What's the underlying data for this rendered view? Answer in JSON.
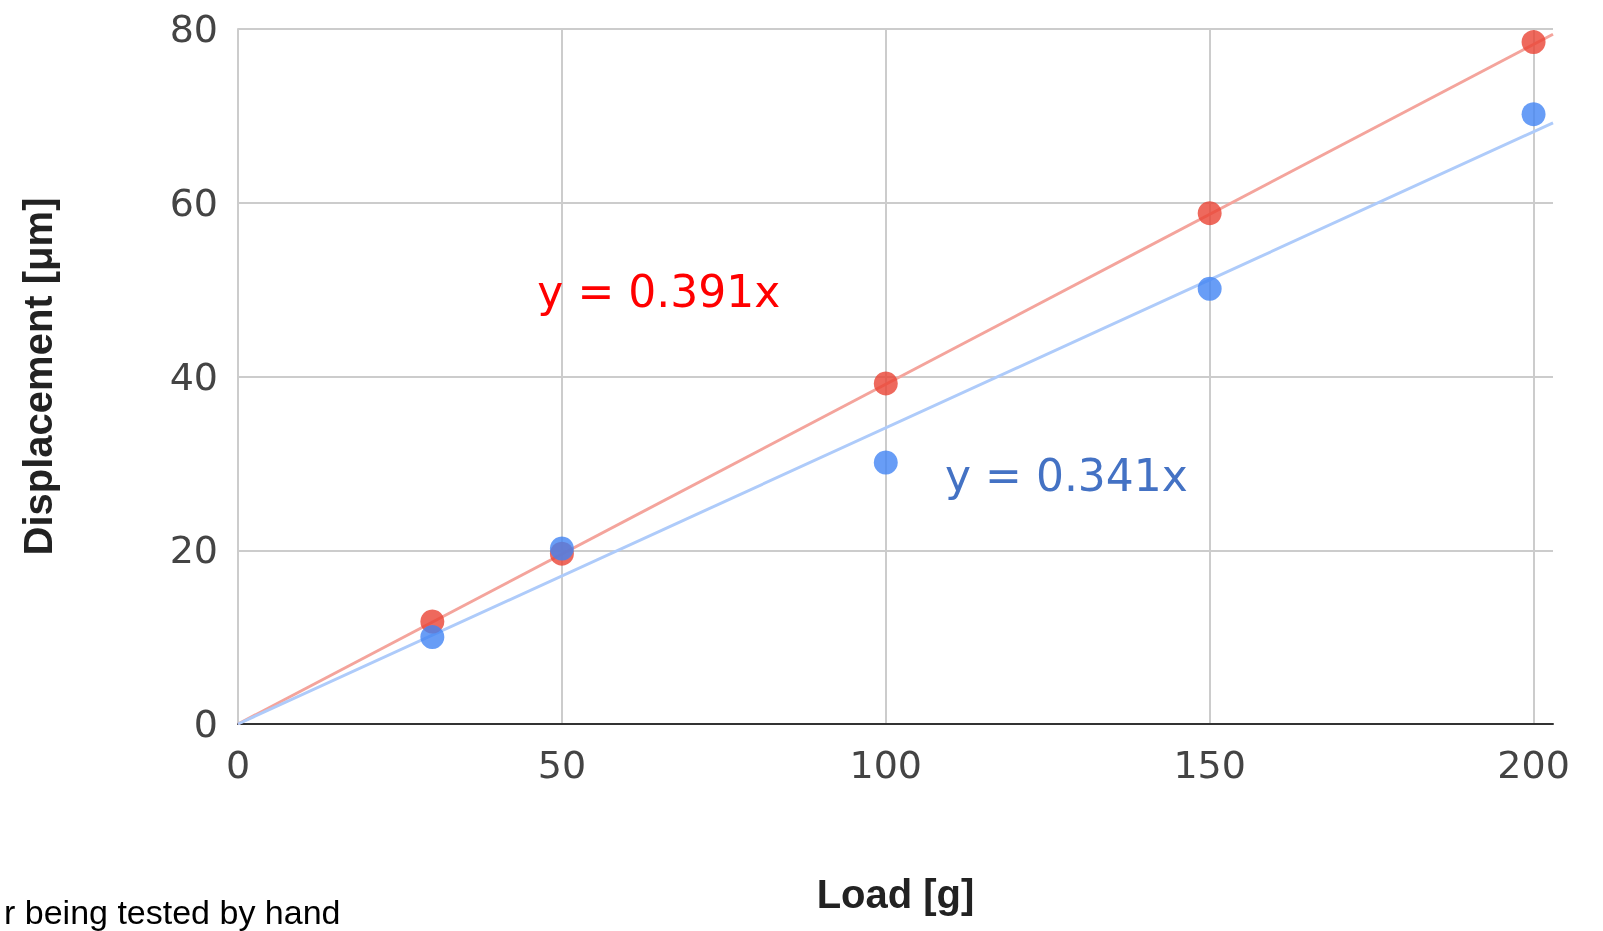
{
  "chart_data": {
    "type": "scatter",
    "xlabel": "Load [g]",
    "ylabel": "Displacement [μm]",
    "annotations": [
      "r being tested by hand"
    ],
    "xlim": [
      0,
      203
    ],
    "xticks": [
      0,
      50,
      100,
      150,
      200
    ],
    "ylim": [
      0,
      80
    ],
    "yticks": [
      0,
      20,
      40,
      60,
      80
    ],
    "grid": true,
    "legend": false,
    "series": [
      {
        "color": "#ea4335",
        "marker": "circle",
        "x": [
          30,
          50,
          100,
          150,
          200
        ],
        "values": [
          11.8,
          19.6,
          39.2,
          58.8,
          78.5
        ]
      },
      {
        "color": "#4285f4",
        "marker": "circle",
        "x": [
          30,
          50,
          100,
          150,
          200
        ],
        "values": [
          10,
          20.2,
          30.1,
          50.1,
          70.2
        ]
      },
      {
        "type": "line",
        "marker": "none",
        "name": "y = 0.391x",
        "color": "#f4a49c",
        "x": [
          0,
          203
        ],
        "values": [
          0,
          79.4
        ]
      },
      {
        "type": "line",
        "marker": "none",
        "name": "y = 0.341x",
        "color": "#aecbfa",
        "x": [
          0,
          203
        ],
        "values": [
          0,
          69.2
        ]
      }
    ]
  }
}
